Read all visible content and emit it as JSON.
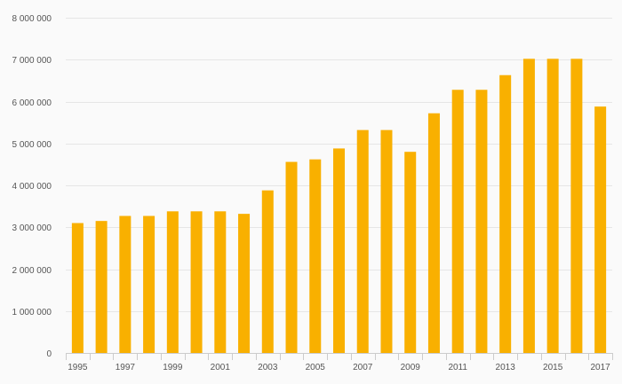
{
  "chart_data": {
    "type": "bar",
    "categories": [
      "1995",
      "1996",
      "1997",
      "1998",
      "1999",
      "2000",
      "2001",
      "2002",
      "2003",
      "2004",
      "2005",
      "2006",
      "2007",
      "2008",
      "2009",
      "2010",
      "2011",
      "2012",
      "2013",
      "2014",
      "2015",
      "2016",
      "2017"
    ],
    "x_tick_labels": [
      "1995",
      "1997",
      "1999",
      "2001",
      "2003",
      "2005",
      "2007",
      "2009",
      "2011",
      "2013",
      "2015",
      "2017"
    ],
    "values": [
      3100000,
      3150000,
      3270000,
      3270000,
      3380000,
      3380000,
      3380000,
      3320000,
      3880000,
      4560000,
      4620000,
      4880000,
      5320000,
      5320000,
      4800000,
      5720000,
      6280000,
      6280000,
      6630000,
      7020000,
      7020000,
      7020000,
      5880000
    ],
    "title": "",
    "xlabel": "",
    "ylabel": "",
    "ylim": [
      0,
      8000000
    ],
    "y_ticks": [
      0,
      1000000,
      2000000,
      3000000,
      4000000,
      5000000,
      6000000,
      7000000,
      8000000
    ],
    "y_tick_labels": [
      "0",
      "1 000 000",
      "2 000 000",
      "3 000 000",
      "4 000 000",
      "5 000 000",
      "6 000 000",
      "7 000 000",
      "8 000 000"
    ],
    "bar_color": "#f9b000",
    "grid": true,
    "legend": "none"
  }
}
